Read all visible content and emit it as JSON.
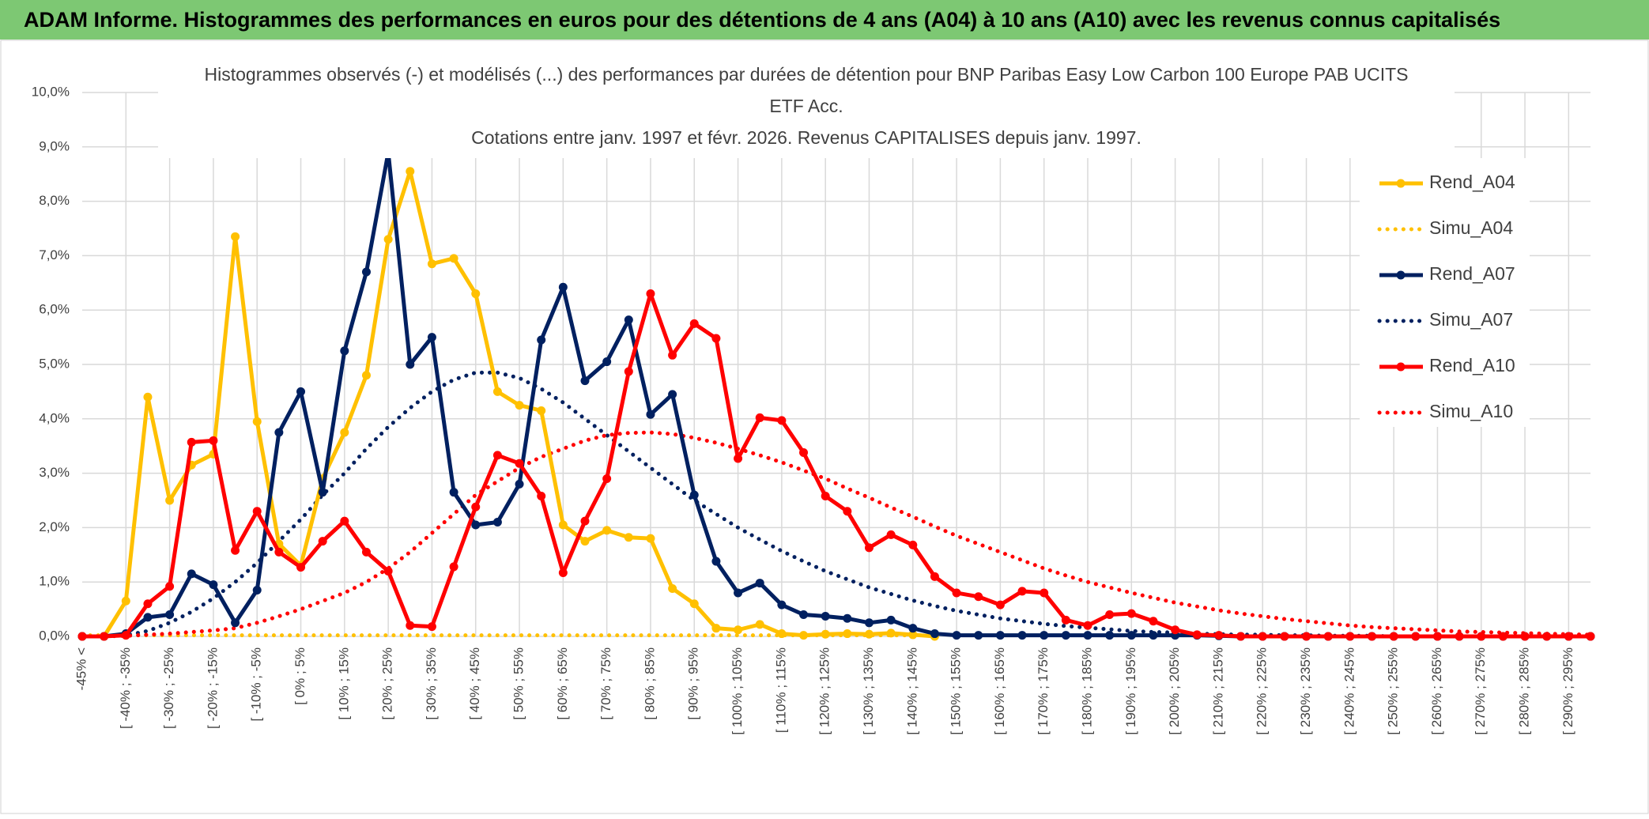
{
  "header": {
    "title": "ADAM Informe. Histogrammes des performances en euros pour des détentions de 4 ans (A04) à 10 ans (A10) avec les revenus connus capitalisés"
  },
  "chart_data": {
    "type": "line",
    "title": [
      "Histogrammes observés (-) et modélisés (...) des performances par durées de détention pour BNP Paribas Easy Low Carbon 100 Europe PAB UCITS",
      "ETF Acc.",
      "Cotations entre janv. 1997 et févr. 2026. Revenus CAPITALISES depuis janv. 1997."
    ],
    "categories": [
      "-45% <",
      null,
      "[ -40% ; -35%",
      null,
      "[ -30% ; -25%",
      null,
      "[ -20% ; -15%",
      null,
      "[ -10% ; -5%",
      null,
      "[ 0% ; 5%",
      null,
      "[ 10% ; 15%",
      null,
      "[ 20% ; 25%",
      null,
      "[ 30% ; 35%",
      null,
      "[ 40% ; 45%",
      null,
      "[ 50% ; 55%",
      null,
      "[ 60% ; 65%",
      null,
      "[ 70% ; 75%",
      null,
      "[ 80% ; 85%",
      null,
      "[ 90% ; 95%",
      null,
      "[ 100% ; 105%",
      null,
      "[ 110% ; 115%",
      null,
      "[ 120% ; 125%",
      null,
      "[ 130% ; 135%",
      null,
      "[ 140% ; 145%",
      null,
      "[ 150% ; 155%",
      null,
      "[ 160% ; 165%",
      null,
      "[ 170% ; 175%",
      null,
      "[ 180% ; 185%",
      null,
      "[ 190% ; 195%",
      null,
      "[ 200% ; 205%",
      null,
      "[ 210% ; 215%",
      null,
      "[ 220% ; 225%",
      null,
      "[ 230% ; 235%",
      null,
      "[ 240% ; 245%",
      null,
      "[ 250% ; 255%",
      null,
      "[ 260% ; 265%",
      null,
      "[ 270% ; 275%",
      null,
      "[ 280% ; 285%",
      null,
      "[ 290% ; 295%",
      null
    ],
    "series": [
      {
        "name": "Rend_A04",
        "color": "#ffc000",
        "style": "solid",
        "markers": true,
        "values": [
          0,
          0,
          0.65,
          4.4,
          2.5,
          3.15,
          3.35,
          7.35,
          3.95,
          1.7,
          1.3,
          2.9,
          3.75,
          4.8,
          7.3,
          8.55,
          6.85,
          6.95,
          6.3,
          4.5,
          4.25,
          4.15,
          2.05,
          1.75,
          1.95,
          1.82,
          1.8,
          0.88,
          0.6,
          0.15,
          0.12,
          0.22,
          0.05,
          0.02,
          0.04,
          0.05,
          0.04,
          0.06,
          0.03,
          0,
          null,
          null,
          null,
          null,
          null,
          null,
          null,
          null,
          null,
          null,
          null,
          null,
          null,
          null,
          null,
          null,
          null,
          null,
          null,
          null,
          null,
          null,
          null,
          null,
          null,
          null,
          null,
          null,
          null,
          null
        ]
      },
      {
        "name": "Simu_A04",
        "color": "#ffc000",
        "style": "dotted",
        "markers": false,
        "values": [
          0.02,
          0.02,
          0.02,
          0.02,
          0.02,
          0.02,
          0.02,
          0.02,
          0.02,
          0.02,
          0.02,
          0.02,
          0.02,
          0.02,
          0.02,
          0.02,
          0.02,
          0.02,
          0.02,
          0.02,
          0.02,
          0.02,
          0.02,
          0.02,
          0.02,
          0.02,
          0.02,
          0.02,
          0.02,
          0.02,
          0.02,
          0.02,
          0.02,
          0.02,
          0.02,
          0.02,
          0.02,
          0.02,
          0.02,
          0.02,
          null,
          null,
          null,
          null,
          null,
          null,
          null,
          null,
          null,
          null,
          null,
          null,
          null,
          null,
          null,
          null,
          null,
          null,
          null,
          null,
          null,
          null,
          null,
          null,
          null,
          null,
          null,
          null,
          null,
          null
        ]
      },
      {
        "name": "Rend_A07",
        "color": "#002060",
        "style": "solid",
        "markers": true,
        "values": [
          0,
          0,
          0.05,
          0.35,
          0.4,
          1.15,
          0.95,
          0.25,
          0.85,
          3.75,
          4.5,
          2.65,
          5.25,
          6.7,
          8.9,
          5.0,
          5.5,
          2.65,
          2.05,
          2.1,
          2.8,
          5.45,
          6.42,
          4.7,
          5.05,
          5.82,
          4.08,
          4.45,
          2.6,
          1.38,
          0.8,
          0.98,
          0.58,
          0.4,
          0.37,
          0.33,
          0.25,
          0.3,
          0.15,
          0.05,
          0.02,
          0.02,
          0.02,
          0.02,
          0.02,
          0.02,
          0.02,
          0.02,
          0.02,
          0.02,
          0.02,
          0.02,
          0.01,
          0,
          0,
          0,
          0,
          0,
          0,
          0,
          0,
          0,
          0,
          0,
          0,
          0,
          0,
          0,
          0,
          0
        ]
      },
      {
        "name": "Simu_A07",
        "color": "#002060",
        "style": "dotted",
        "markers": false,
        "values": [
          0,
          0,
          0.02,
          0.1,
          0.25,
          0.45,
          0.7,
          1.0,
          1.35,
          1.75,
          2.15,
          2.6,
          3.0,
          3.45,
          3.85,
          4.2,
          4.5,
          4.72,
          4.85,
          4.85,
          4.75,
          4.55,
          4.3,
          4.0,
          3.7,
          3.4,
          3.1,
          2.8,
          2.5,
          2.25,
          2.0,
          1.78,
          1.57,
          1.38,
          1.2,
          1.05,
          0.9,
          0.78,
          0.66,
          0.56,
          0.47,
          0.4,
          0.33,
          0.28,
          0.23,
          0.19,
          0.16,
          0.13,
          0.1,
          0.08,
          0.07,
          0.05,
          0.04,
          0.03,
          0.03,
          0.02,
          0.02,
          0.01,
          0.01,
          0.01,
          0,
          0,
          0,
          0,
          0,
          0,
          0,
          0,
          0,
          0
        ]
      },
      {
        "name": "Rend_A10",
        "color": "#ff0000",
        "style": "solid",
        "markers": true,
        "values": [
          0,
          0,
          0.02,
          0.6,
          0.92,
          3.57,
          3.6,
          1.58,
          2.3,
          1.55,
          1.27,
          1.75,
          2.12,
          1.55,
          1.2,
          0.2,
          0.18,
          1.28,
          2.38,
          3.33,
          3.18,
          2.58,
          1.17,
          2.12,
          2.9,
          4.87,
          6.3,
          5.17,
          5.75,
          5.48,
          3.27,
          4.02,
          3.97,
          3.38,
          2.58,
          2.3,
          1.63,
          1.87,
          1.68,
          1.1,
          0.8,
          0.73,
          0.58,
          0.83,
          0.8,
          0.3,
          0.2,
          0.4,
          0.42,
          0.28,
          0.12,
          0.03,
          0.02,
          0,
          0,
          0,
          0,
          0,
          0,
          0,
          0,
          0,
          0,
          0,
          0,
          0,
          0,
          0,
          0,
          0
        ]
      },
      {
        "name": "Simu_A10",
        "color": "#ff0000",
        "style": "dotted",
        "markers": false,
        "values": [
          0,
          0,
          0.01,
          0.03,
          0.05,
          0.08,
          0.11,
          0.15,
          0.25,
          0.37,
          0.5,
          0.65,
          0.8,
          1.0,
          1.25,
          1.55,
          1.9,
          2.25,
          2.6,
          2.85,
          3.1,
          3.3,
          3.45,
          3.6,
          3.7,
          3.74,
          3.75,
          3.72,
          3.65,
          3.56,
          3.45,
          3.33,
          3.2,
          3.05,
          2.9,
          2.72,
          2.55,
          2.37,
          2.2,
          2.02,
          1.85,
          1.7,
          1.55,
          1.4,
          1.25,
          1.12,
          1.0,
          0.9,
          0.8,
          0.71,
          0.62,
          0.55,
          0.48,
          0.42,
          0.37,
          0.32,
          0.28,
          0.24,
          0.2,
          0.17,
          0.15,
          0.13,
          0.11,
          0.09,
          0.08,
          0.07,
          0.06,
          0.05,
          0.04,
          0.03
        ]
      }
    ],
    "ylim": [
      0,
      10
    ],
    "yticks": [
      {
        "value": 0,
        "label": "0,0%"
      },
      {
        "value": 1,
        "label": "1,0%"
      },
      {
        "value": 2,
        "label": "2,0%"
      },
      {
        "value": 3,
        "label": "3,0%"
      },
      {
        "value": 4,
        "label": "4,0%"
      },
      {
        "value": 5,
        "label": "5,0%"
      },
      {
        "value": 6,
        "label": "6,0%"
      },
      {
        "value": 7,
        "label": "7,0%"
      },
      {
        "value": 8,
        "label": "8,0%"
      },
      {
        "value": 9,
        "label": "9,0%"
      },
      {
        "value": 10,
        "label": "10,0%"
      }
    ],
    "grid": true,
    "legend": "right"
  }
}
